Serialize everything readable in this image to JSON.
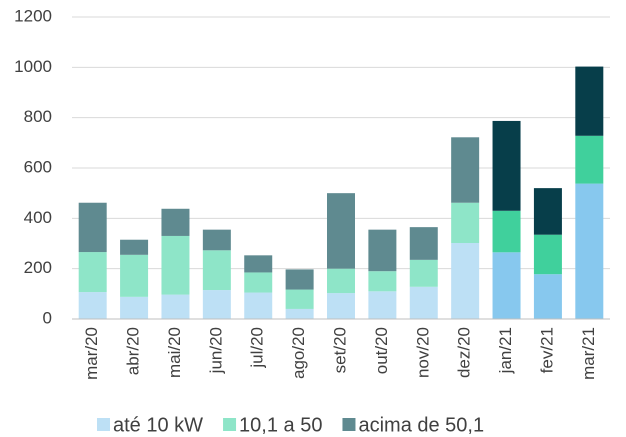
{
  "chart_data": {
    "type": "stacked_bar",
    "categories": [
      "mar/20",
      "abr/20",
      "mai/20",
      "jun/20",
      "jul/20",
      "ago/20",
      "set/20",
      "out/20",
      "nov/20",
      "dez/20",
      "jan/21",
      "fev/21",
      "mar/21"
    ],
    "series": [
      {
        "name": "até 10 kW",
        "color": "#bde0f5",
        "values": [
          107,
          88,
          97,
          115,
          105,
          40,
          103,
          110,
          128,
          302,
          265,
          178,
          538
        ],
        "colors": [
          "#bde0f5",
          "#bde0f5",
          "#bde0f5",
          "#bde0f5",
          "#bde0f5",
          "#bde0f5",
          "#bde0f5",
          "#bde0f5",
          "#bde0f5",
          "#bde0f5",
          "#87c8ee",
          "#87c8ee",
          "#87c8ee"
        ]
      },
      {
        "name": "10,1 a 50",
        "color": "#8ee5c8",
        "values": [
          159,
          167,
          233,
          158,
          80,
          77,
          97,
          80,
          107,
          160,
          165,
          157,
          190
        ],
        "colors": [
          "#8ee5c8",
          "#8ee5c8",
          "#8ee5c8",
          "#8ee5c8",
          "#8ee5c8",
          "#8ee5c8",
          "#8ee5c8",
          "#8ee5c8",
          "#8ee5c8",
          "#8ee5c8",
          "#40d09c",
          "#40d09c",
          "#40d09c"
        ]
      },
      {
        "name": "acima de 50,1",
        "color": "#5f8a90",
        "values": [
          196,
          60,
          108,
          82,
          68,
          80,
          300,
          165,
          130,
          260,
          357,
          185,
          275
        ],
        "colors": [
          "#5f8a90",
          "#5f8a90",
          "#5f8a90",
          "#5f8a90",
          "#5f8a90",
          "#5f8a90",
          "#5f8a90",
          "#5f8a90",
          "#5f8a90",
          "#5f8a90",
          "#073e4a",
          "#073e4a",
          "#073e4a"
        ]
      }
    ],
    "ylim": [
      0,
      1200
    ],
    "yticks": [
      0,
      200,
      400,
      600,
      800,
      1000,
      1200
    ],
    "grid": true,
    "legend": "bottom"
  }
}
